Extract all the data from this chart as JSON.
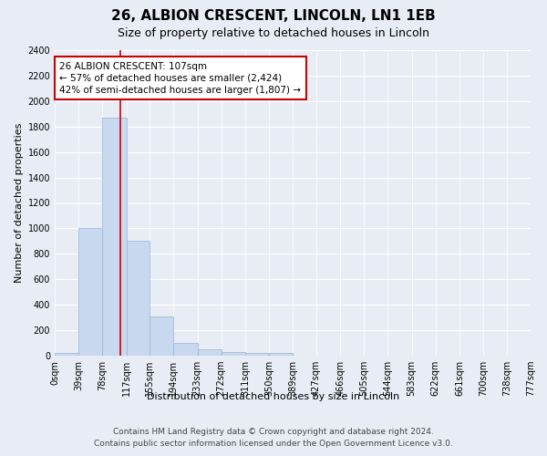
{
  "title1": "26, ALBION CRESCENT, LINCOLN, LN1 1EB",
  "title2": "Size of property relative to detached houses in Lincoln",
  "xlabel": "Distribution of detached houses by size in Lincoln",
  "ylabel": "Number of detached properties",
  "bar_edges": [
    0,
    39,
    78,
    117,
    155,
    194,
    233,
    272,
    311,
    350,
    389,
    427,
    466,
    505,
    544,
    583,
    622,
    661,
    700,
    738,
    777
  ],
  "bar_heights": [
    20,
    1005,
    1870,
    900,
    305,
    100,
    50,
    30,
    20,
    20,
    0,
    0,
    0,
    0,
    0,
    0,
    0,
    0,
    0,
    0
  ],
  "bar_color": "#c8d8ee",
  "bar_edgecolor": "#9ab4d4",
  "property_line_x": 107,
  "vline_color": "#cc0000",
  "annotation_text": "26 ALBION CRESCENT: 107sqm\n← 57% of detached houses are smaller (2,424)\n42% of semi-detached houses are larger (1,807) →",
  "annotation_box_color": "white",
  "annotation_box_edgecolor": "#cc0000",
  "ylim": [
    0,
    2400
  ],
  "yticks": [
    0,
    200,
    400,
    600,
    800,
    1000,
    1200,
    1400,
    1600,
    1800,
    2000,
    2200,
    2400
  ],
  "bg_color": "#e8edf5",
  "plot_bg_color": "#e8edf5",
  "footer1": "Contains HM Land Registry data © Crown copyright and database right 2024.",
  "footer2": "Contains public sector information licensed under the Open Government Licence v3.0.",
  "title1_fontsize": 11,
  "title2_fontsize": 9,
  "xlabel_fontsize": 8,
  "ylabel_fontsize": 8,
  "tick_fontsize": 7,
  "footer_fontsize": 6.5,
  "annotation_fontsize": 7.5
}
